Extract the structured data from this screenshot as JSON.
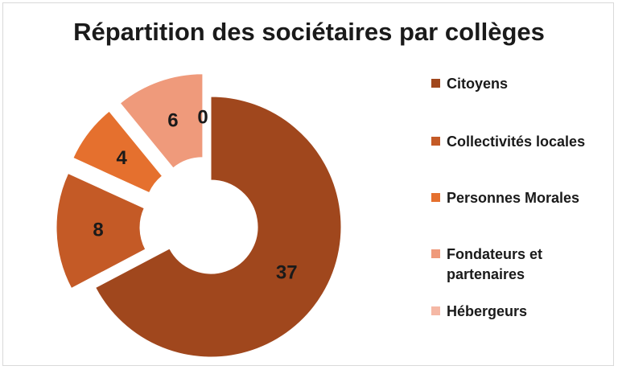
{
  "chart_data": {
    "type": "pie",
    "variant": "donut-exploded",
    "title": "Répartition des sociétaires par collèges",
    "categories": [
      "Citoyens",
      "Collectivités locales",
      "Personnes Morales",
      "Fondateurs et partenaires",
      "Hébergeurs"
    ],
    "values": [
      37,
      8,
      4,
      6,
      0
    ],
    "data_labels": [
      "37",
      "8",
      "4",
      "6",
      "0"
    ],
    "colors": [
      "#a0471d",
      "#c45a26",
      "#e5702e",
      "#ef9a7b",
      "#f5b8a5"
    ],
    "legend": {
      "position": "right",
      "entries": [
        "Citoyens",
        "Collectivités locales",
        "Personnes Morales",
        "Fondateurs et partenaires",
        "Hébergeurs"
      ]
    }
  }
}
